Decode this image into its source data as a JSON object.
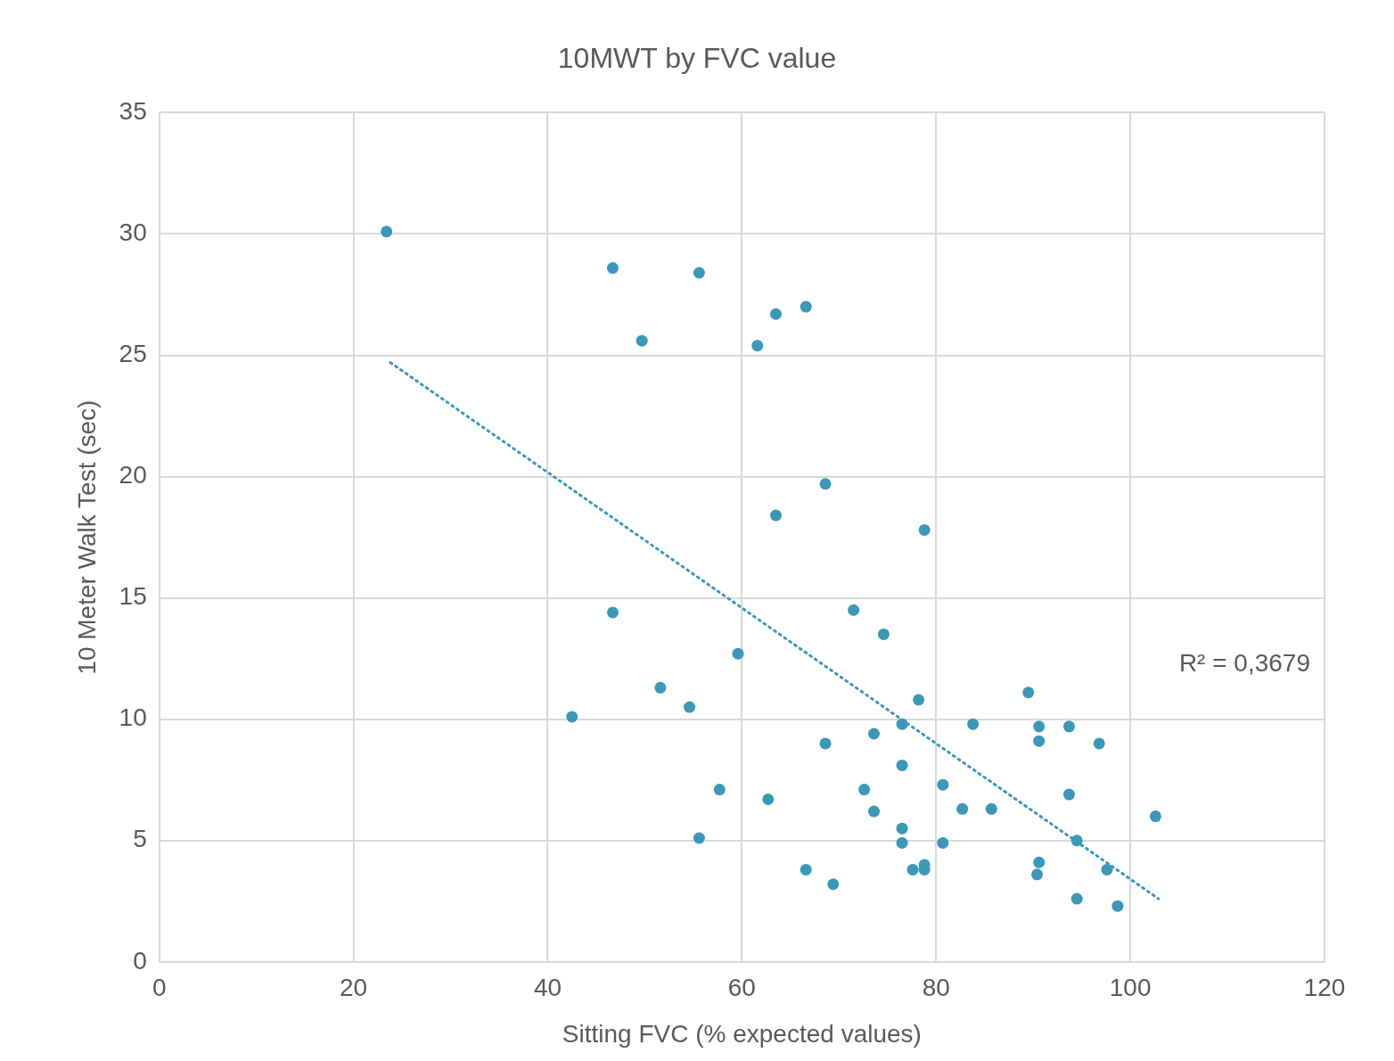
{
  "chart_data": {
    "type": "scatter",
    "title": "10MWT by FVC value",
    "xlabel": "Sitting FVC (% expected values)",
    "ylabel": "10 Meter Walk Test (sec)",
    "xlim": [
      0,
      120
    ],
    "xticks": [
      0,
      20,
      40,
      60,
      80,
      100,
      120
    ],
    "ylim": [
      0,
      35
    ],
    "yticks": [
      0,
      5,
      10,
      15,
      20,
      25,
      30,
      35
    ],
    "grid": true,
    "legend": false,
    "marker": "circle",
    "annotations": [
      "R² = 0,3679"
    ],
    "series": [
      {
        "color": "#3a98b9",
        "x": [
          23.4,
          46.7,
          55.6,
          63.5,
          66.6,
          49.7,
          61.6,
          68.6,
          63.5,
          78.8,
          46.7,
          71.5,
          74.6,
          59.6,
          51.6,
          54.6,
          42.5,
          78.2,
          89.5,
          76.5,
          83.8,
          90.6,
          93.7,
          90.6,
          96.8,
          68.6,
          73.6,
          76.5,
          80.7,
          57.7,
          72.6,
          93.7,
          62.7,
          73.6,
          82.7,
          85.7,
          102.6,
          76.5,
          55.6,
          76.5,
          80.7,
          94.5,
          90.6,
          78.8,
          77.6,
          78.8,
          66.6,
          97.6,
          69.4,
          90.4,
          94.5,
          98.7
        ],
        "values": [
          30.1,
          28.6,
          28.4,
          26.7,
          27.0,
          25.6,
          25.4,
          19.7,
          18.4,
          17.8,
          14.4,
          14.5,
          13.5,
          12.7,
          11.3,
          10.5,
          10.1,
          10.8,
          11.1,
          9.8,
          9.8,
          9.7,
          9.7,
          9.1,
          9.0,
          9.0,
          9.4,
          8.1,
          7.3,
          7.1,
          7.1,
          6.9,
          6.7,
          6.2,
          6.3,
          6.3,
          6.0,
          5.5,
          5.1,
          4.9,
          4.9,
          5.0,
          4.1,
          4.0,
          3.8,
          3.8,
          3.8,
          3.8,
          3.2,
          3.6,
          2.6,
          2.3
        ]
      },
      {
        "type": "line",
        "color": "#3a98b9",
        "line_style": "dotted",
        "marker": "none",
        "x": [
          23.8,
          102.9
        ],
        "values": [
          24.7,
          2.6
        ]
      }
    ]
  }
}
